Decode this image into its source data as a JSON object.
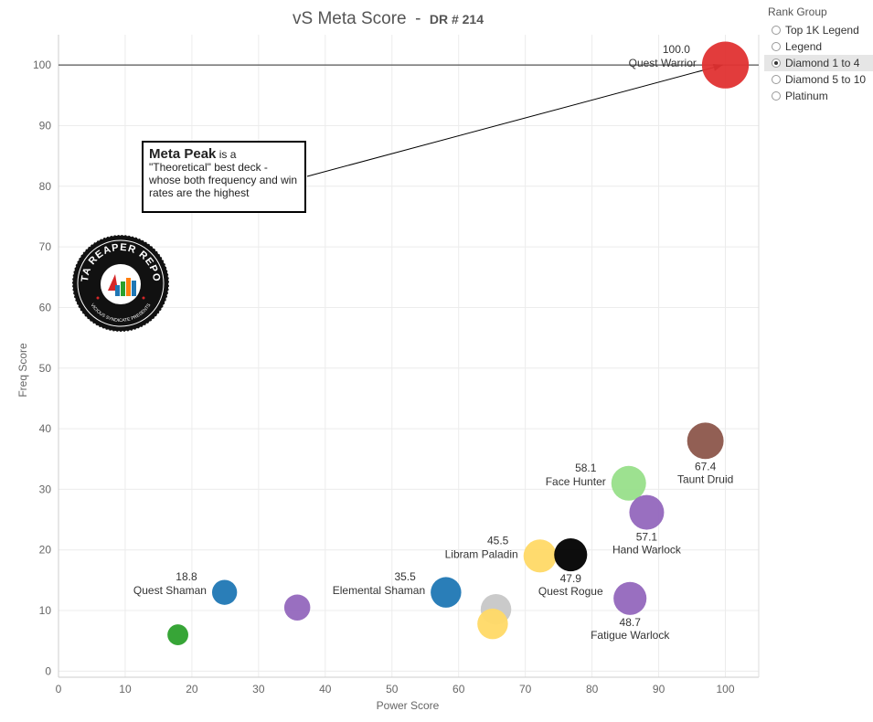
{
  "title": "vS Meta Score",
  "title_sep": "-",
  "subtitle": "DR # 214",
  "legend": {
    "title": "Rank Group",
    "items": [
      "Top 1K Legend",
      "Legend",
      "Diamond 1 to 4",
      "Diamond 5 to 10",
      "Platinum"
    ],
    "selected_index": 2
  },
  "annotation": {
    "bold": "Meta Peak",
    "rest": "is a \"Theoretical\" best deck - whose both frequency and win rates are the highest"
  },
  "logo": {
    "top_text": "DATA REAPER REPORT",
    "bottom_text": "VICIOUS SYNDICATE PRESENTS"
  },
  "chart_data": {
    "type": "scatter",
    "xlabel": "Power Score",
    "ylabel": "Freq Score",
    "xlim": [
      0,
      105
    ],
    "ylim": [
      -1,
      105
    ],
    "xticks": [
      0,
      10,
      20,
      30,
      40,
      50,
      60,
      70,
      80,
      90,
      100
    ],
    "yticks": [
      0,
      10,
      20,
      30,
      40,
      50,
      60,
      70,
      80,
      90,
      100
    ],
    "reference_line_y": 100,
    "points": [
      {
        "x": 100,
        "y": 100,
        "color": "#e03131",
        "size": 1.35,
        "score": "100.0",
        "name": "Quest Warrior",
        "pos": "left"
      },
      {
        "x": 97,
        "y": 38,
        "color": "#8c564b",
        "size": 1.05,
        "score": "67.4",
        "name": "Taunt Druid",
        "pos": "below"
      },
      {
        "x": 85.5,
        "y": 31,
        "color": "#98df8a",
        "size": 1.0,
        "score": "58.1",
        "name": "Face Hunter",
        "pos": "left"
      },
      {
        "x": 88.2,
        "y": 26.2,
        "color": "#9467bd",
        "size": 1.0,
        "score": "57.1",
        "name": "Hand Warlock",
        "pos": "below"
      },
      {
        "x": 72.2,
        "y": 19,
        "color": "#ffd966",
        "size": 0.95,
        "score": "45.5",
        "name": "Libram Paladin",
        "pos": "left"
      },
      {
        "x": 76.8,
        "y": 19.2,
        "color": "#000000",
        "size": 0.95,
        "score": "47.9",
        "name": "Quest Rogue",
        "pos": "below"
      },
      {
        "x": 85.7,
        "y": 12,
        "color": "#9467bd",
        "size": 0.95,
        "score": "48.7",
        "name": "Fatigue Warlock",
        "pos": "below"
      },
      {
        "x": 58.1,
        "y": 13,
        "color": "#1f77b4",
        "size": 0.88,
        "score": "35.5",
        "name": "Elemental Shaman",
        "pos": "left"
      },
      {
        "x": 65.6,
        "y": 10.2,
        "color": "#c7c7c7",
        "size": 0.88,
        "score": "",
        "name": "",
        "pos": "none"
      },
      {
        "x": 65.1,
        "y": 7.8,
        "color": "#ffd966",
        "size": 0.88,
        "score": "",
        "name": "",
        "pos": "none"
      },
      {
        "x": 24.9,
        "y": 13,
        "color": "#1f77b4",
        "size": 0.72,
        "score": "18.8",
        "name": "Quest Shaman",
        "pos": "left"
      },
      {
        "x": 35.8,
        "y": 10.5,
        "color": "#9467bd",
        "size": 0.75,
        "score": "",
        "name": "",
        "pos": "none"
      },
      {
        "x": 17.9,
        "y": 6,
        "color": "#2ca02c",
        "size": 0.6,
        "score": "",
        "name": "",
        "pos": "none"
      }
    ]
  }
}
